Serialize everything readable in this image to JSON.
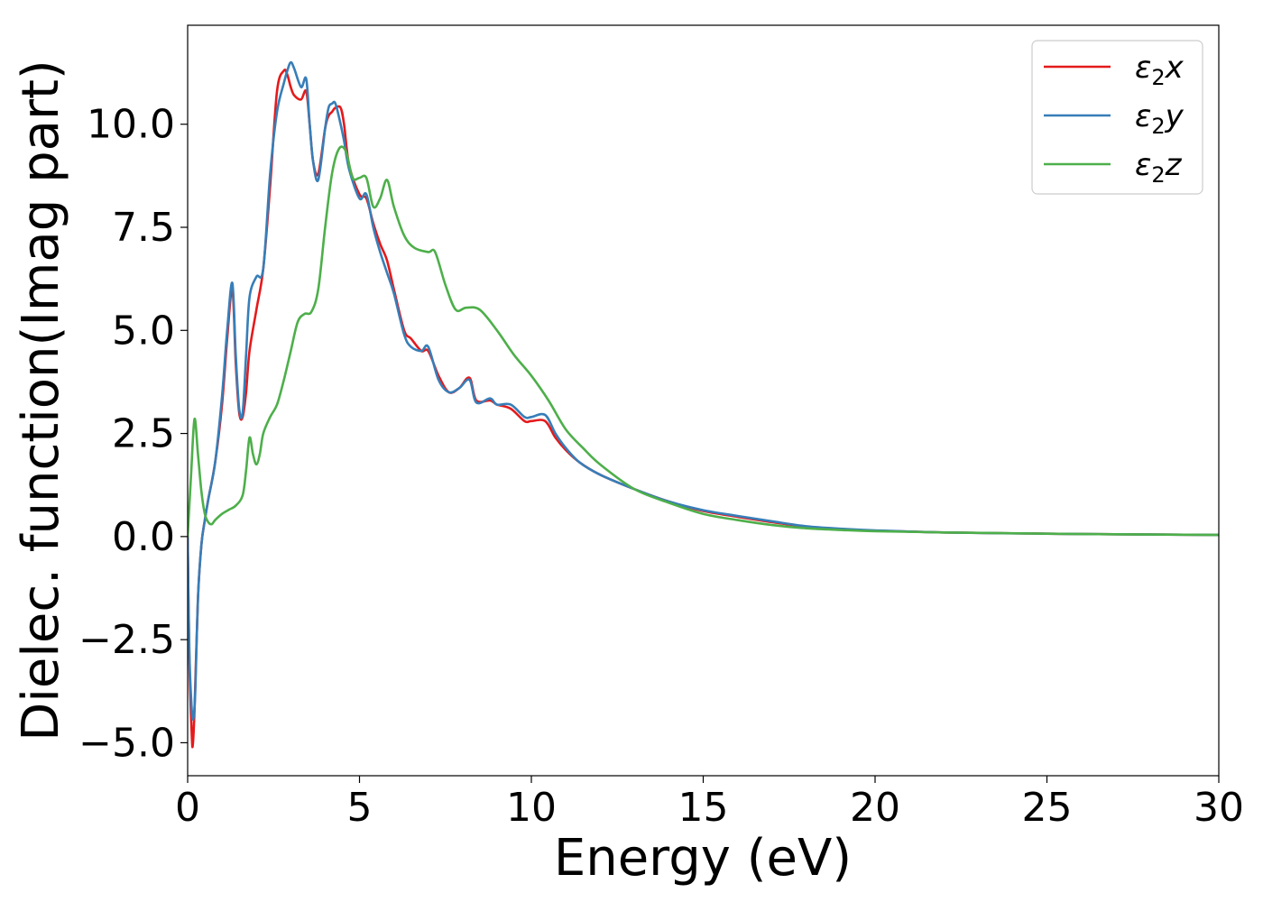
{
  "chart_data": {
    "type": "line",
    "xlabel": "Energy (eV)",
    "ylabel": "Dielec. function(Imag part)",
    "xlim": [
      0,
      30
    ],
    "ylim": [
      -5.8,
      12.4
    ],
    "xticks": [
      0,
      5,
      10,
      15,
      20,
      25,
      30
    ],
    "xtick_labels": [
      "0",
      "5",
      "10",
      "15",
      "20",
      "25",
      "30"
    ],
    "yticks": [
      -5.0,
      -2.5,
      0.0,
      2.5,
      5.0,
      7.5,
      10.0
    ],
    "ytick_labels": [
      "−5.0",
      "−2.5",
      "0.0",
      "2.5",
      "5.0",
      "7.5",
      "10.0"
    ],
    "grid": false,
    "legend_position": "top-right",
    "series": [
      {
        "name": "ε₂x",
        "legend_base": "ε",
        "legend_sub": "2",
        "legend_suffix": "x",
        "color": "#e41a1c",
        "x": [
          0,
          0.05,
          0.12,
          0.15,
          0.2,
          0.3,
          0.4,
          0.5,
          0.6,
          0.8,
          1.0,
          1.15,
          1.3,
          1.4,
          1.5,
          1.6,
          1.7,
          1.8,
          2.0,
          2.2,
          2.4,
          2.6,
          2.8,
          2.9,
          3.0,
          3.1,
          3.3,
          3.45,
          3.55,
          3.65,
          3.8,
          4.0,
          4.1,
          4.2,
          4.3,
          4.45,
          4.55,
          4.7,
          5.0,
          5.2,
          5.4,
          5.6,
          5.8,
          6.0,
          6.3,
          6.5,
          6.8,
          7.0,
          7.3,
          7.6,
          7.9,
          8.2,
          8.4,
          8.8,
          9.0,
          9.4,
          9.8,
          10.0,
          10.4,
          10.7,
          11.0,
          11.4,
          12.0,
          13.0,
          14.0,
          15.0,
          16.0,
          17.0,
          18.0,
          19.0,
          20.0,
          22.0,
          25.0,
          28.0,
          30.0
        ],
        "y": [
          0.0,
          -3.0,
          -4.8,
          -5.05,
          -4.2,
          -1.5,
          -0.2,
          0.4,
          0.9,
          1.8,
          3.2,
          4.8,
          6.0,
          4.2,
          3.0,
          2.9,
          3.5,
          4.5,
          5.5,
          6.5,
          8.5,
          10.8,
          11.3,
          11.2,
          10.9,
          10.7,
          10.6,
          10.8,
          10.0,
          9.1,
          8.8,
          9.9,
          10.2,
          10.3,
          10.4,
          10.4,
          10.0,
          9.0,
          8.3,
          8.2,
          7.6,
          7.1,
          6.7,
          6.0,
          5.0,
          4.8,
          4.5,
          4.5,
          3.9,
          3.5,
          3.6,
          3.85,
          3.3,
          3.3,
          3.2,
          3.1,
          2.8,
          2.8,
          2.8,
          2.4,
          2.1,
          1.8,
          1.5,
          1.15,
          0.85,
          0.62,
          0.48,
          0.35,
          0.24,
          0.18,
          0.14,
          0.1,
          0.07,
          0.05,
          0.04
        ]
      },
      {
        "name": "ε₂y",
        "legend_base": "ε",
        "legend_sub": "2",
        "legend_suffix": "y",
        "color": "#377eb8",
        "x": [
          0,
          0.05,
          0.12,
          0.17,
          0.22,
          0.3,
          0.4,
          0.5,
          0.6,
          0.8,
          1.0,
          1.15,
          1.3,
          1.4,
          1.5,
          1.6,
          1.7,
          1.8,
          2.0,
          2.2,
          2.4,
          2.6,
          2.8,
          2.9,
          3.0,
          3.1,
          3.3,
          3.45,
          3.55,
          3.65,
          3.8,
          4.0,
          4.1,
          4.2,
          4.3,
          4.45,
          4.55,
          4.7,
          5.0,
          5.2,
          5.4,
          5.6,
          5.8,
          6.0,
          6.3,
          6.5,
          6.8,
          7.0,
          7.3,
          7.6,
          7.9,
          8.2,
          8.4,
          8.8,
          9.0,
          9.4,
          9.8,
          10.0,
          10.4,
          10.7,
          11.0,
          11.4,
          12.0,
          13.0,
          14.0,
          15.0,
          16.0,
          17.0,
          18.0,
          19.0,
          20.0,
          22.0,
          25.0,
          28.0,
          30.0
        ],
        "y": [
          0.0,
          -2.8,
          -4.2,
          -4.4,
          -3.8,
          -1.5,
          -0.2,
          0.4,
          0.9,
          1.8,
          3.4,
          5.0,
          6.15,
          4.4,
          3.1,
          3.0,
          4.4,
          5.8,
          6.3,
          6.5,
          8.8,
          10.3,
          11.0,
          11.3,
          11.5,
          11.35,
          10.9,
          11.1,
          10.0,
          9.1,
          8.65,
          9.9,
          10.4,
          10.5,
          10.5,
          10.0,
          9.6,
          8.9,
          8.2,
          8.3,
          7.5,
          6.9,
          6.4,
          5.9,
          4.9,
          4.6,
          4.5,
          4.6,
          3.8,
          3.5,
          3.6,
          3.8,
          3.25,
          3.35,
          3.2,
          3.2,
          2.9,
          2.9,
          2.95,
          2.5,
          2.15,
          1.8,
          1.5,
          1.15,
          0.85,
          0.64,
          0.5,
          0.37,
          0.25,
          0.19,
          0.15,
          0.1,
          0.07,
          0.05,
          0.04
        ]
      },
      {
        "name": "ε₂z",
        "legend_base": "ε",
        "legend_sub": "2",
        "legend_suffix": "z",
        "color": "#4daf4a",
        "x": [
          0,
          0.1,
          0.2,
          0.3,
          0.4,
          0.5,
          0.6,
          0.7,
          0.8,
          1.0,
          1.2,
          1.4,
          1.6,
          1.7,
          1.8,
          1.9,
          2.0,
          2.1,
          2.2,
          2.4,
          2.6,
          2.8,
          3.0,
          3.2,
          3.4,
          3.6,
          3.8,
          4.0,
          4.2,
          4.4,
          4.6,
          4.8,
          5.0,
          5.2,
          5.4,
          5.6,
          5.8,
          6.0,
          6.3,
          6.6,
          7.0,
          7.2,
          7.5,
          7.8,
          8.1,
          8.5,
          9.0,
          9.5,
          10.0,
          10.5,
          11.0,
          11.5,
          12.0,
          13.0,
          14.0,
          15.0,
          16.0,
          17.0,
          18.0,
          19.0,
          20.0,
          22.0,
          25.0,
          28.0,
          30.0
        ],
        "y": [
          0.0,
          1.5,
          2.85,
          2.0,
          1.1,
          0.55,
          0.35,
          0.3,
          0.4,
          0.55,
          0.65,
          0.75,
          1.0,
          1.6,
          2.4,
          2.0,
          1.75,
          2.0,
          2.5,
          2.9,
          3.2,
          3.8,
          4.5,
          5.2,
          5.4,
          5.45,
          6.0,
          7.5,
          8.8,
          9.4,
          9.35,
          8.7,
          8.7,
          8.7,
          8.0,
          8.2,
          8.65,
          8.0,
          7.3,
          7.0,
          6.9,
          6.9,
          6.1,
          5.5,
          5.55,
          5.5,
          5.0,
          4.4,
          3.9,
          3.3,
          2.6,
          2.15,
          1.75,
          1.15,
          0.82,
          0.55,
          0.4,
          0.28,
          0.2,
          0.16,
          0.13,
          0.1,
          0.07,
          0.05,
          0.04
        ]
      }
    ]
  }
}
